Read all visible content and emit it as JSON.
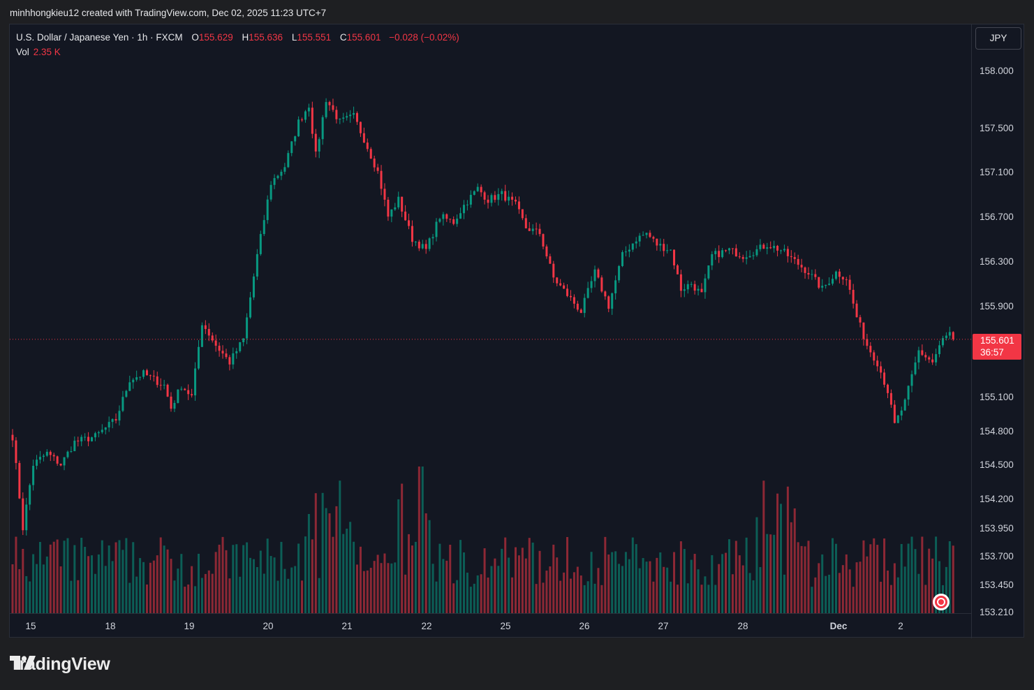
{
  "header": {
    "created_text": "minhhongkieu12 created with TradingView.com, Dec 02, 2025 11:23 UTC+7"
  },
  "legend": {
    "symbol": "U.S. Dollar / Japanese Yen · 1h · FXCM",
    "o_label": "O",
    "o_value": "155.629",
    "h_label": "H",
    "h_value": "155.636",
    "l_label": "L",
    "l_value": "155.551",
    "c_label": "C",
    "c_value": "155.601",
    "change": "−0.028 (−0.02%)",
    "vol_label": "Vol",
    "vol_value": "2.35 K"
  },
  "currency_button": "JPY",
  "price_tag": {
    "price": "155.601",
    "countdown": "36:57"
  },
  "logo": {
    "text": "TradingView",
    "icon": "tradingview-logo-icon"
  },
  "colors": {
    "up": "#089981",
    "down": "#f23645",
    "background": "#131722"
  },
  "chart_data": {
    "type": "candlestick",
    "title": "U.S. Dollar / Japanese Yen · 1h · FXCM",
    "y_ticks": [
      "158.000",
      "157.500",
      "157.100",
      "156.700",
      "156.300",
      "155.900",
      "155.600",
      "155.100",
      "154.800",
      "154.500",
      "154.200",
      "153.950",
      "153.700",
      "153.450",
      "153.210"
    ],
    "x_ticks": [
      "15",
      "18",
      "19",
      "20",
      "21",
      "22",
      "25",
      "26",
      "27",
      "28",
      "Dec",
      "2"
    ],
    "last_price": 155.601,
    "waypoints": [
      [
        0,
        154.75
      ],
      [
        3,
        153.95
      ],
      [
        6,
        154.5
      ],
      [
        10,
        154.6
      ],
      [
        14,
        154.5
      ],
      [
        18,
        154.7
      ],
      [
        24,
        154.75
      ],
      [
        30,
        154.9
      ],
      [
        34,
        155.25
      ],
      [
        38,
        155.3
      ],
      [
        44,
        155.2
      ],
      [
        46,
        155.0
      ],
      [
        49,
        155.2
      ],
      [
        52,
        155.1
      ],
      [
        55,
        155.75
      ],
      [
        59,
        155.55
      ],
      [
        63,
        155.4
      ],
      [
        67,
        155.6
      ],
      [
        71,
        156.35
      ],
      [
        75,
        157.0
      ],
      [
        79,
        157.15
      ],
      [
        83,
        157.55
      ],
      [
        86,
        157.7
      ],
      [
        88,
        157.25
      ],
      [
        91,
        157.75
      ],
      [
        95,
        157.55
      ],
      [
        99,
        157.6
      ],
      [
        102,
        157.4
      ],
      [
        106,
        157.1
      ],
      [
        109,
        156.7
      ],
      [
        112,
        156.85
      ],
      [
        116,
        156.5
      ],
      [
        120,
        156.4
      ],
      [
        124,
        156.7
      ],
      [
        128,
        156.65
      ],
      [
        131,
        156.8
      ],
      [
        135,
        156.95
      ],
      [
        138,
        156.85
      ],
      [
        142,
        156.9
      ],
      [
        146,
        156.8
      ],
      [
        149,
        156.6
      ],
      [
        153,
        156.55
      ],
      [
        157,
        156.15
      ],
      [
        161,
        156.0
      ],
      [
        165,
        155.85
      ],
      [
        169,
        156.2
      ],
      [
        173,
        155.9
      ],
      [
        177,
        156.35
      ],
      [
        181,
        156.5
      ],
      [
        184,
        156.55
      ],
      [
        187,
        156.45
      ],
      [
        191,
        156.4
      ],
      [
        194,
        156.05
      ],
      [
        197,
        156.1
      ],
      [
        200,
        156.0
      ],
      [
        203,
        156.35
      ],
      [
        208,
        156.4
      ],
      [
        212,
        156.35
      ],
      [
        216,
        156.4
      ],
      [
        219,
        156.45
      ],
      [
        223,
        156.4
      ],
      [
        227,
        156.3
      ],
      [
        231,
        156.2
      ],
      [
        235,
        156.05
      ],
      [
        239,
        156.2
      ],
      [
        242,
        156.15
      ],
      [
        245,
        155.8
      ],
      [
        248,
        155.55
      ],
      [
        251,
        155.4
      ],
      [
        254,
        155.15
      ],
      [
        256,
        154.85
      ],
      [
        259,
        155.05
      ],
      [
        263,
        155.5
      ],
      [
        267,
        155.4
      ],
      [
        270,
        155.6
      ],
      [
        272,
        155.65
      ],
      [
        273,
        155.6
      ]
    ],
    "volume_label": "Vol",
    "volume_last": "2.35 K"
  }
}
